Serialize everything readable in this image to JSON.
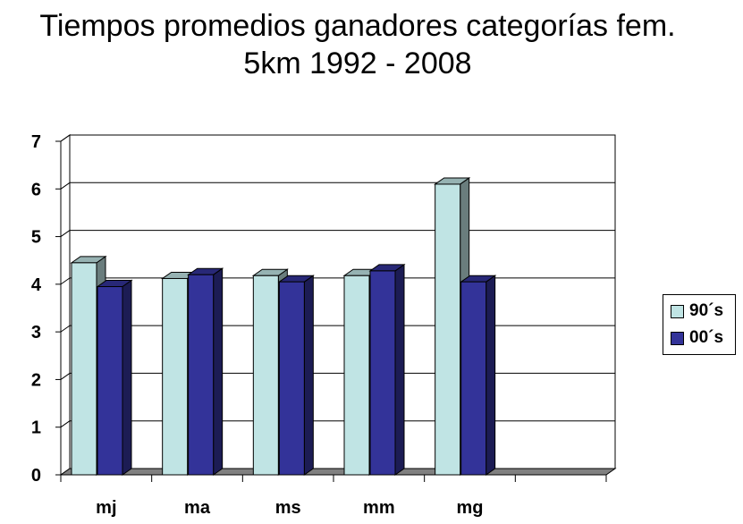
{
  "chart_data": {
    "type": "bar",
    "title_lines": [
      "Tiempos promedios ganadores categorías fem.",
      "5km 1992 - 2008"
    ],
    "categories": [
      "mj",
      "ma",
      "ms",
      "mm",
      "mg"
    ],
    "series": [
      {
        "name": "90´s",
        "values": [
          4.45,
          4.12,
          4.18,
          4.18,
          6.1
        ],
        "color": "#c0e4e4"
      },
      {
        "name": "00´s",
        "values": [
          3.95,
          4.2,
          4.05,
          4.28,
          4.05
        ],
        "color": "#333399"
      }
    ],
    "yticks": [
      "0",
      "1",
      "2",
      "3",
      "4",
      "5",
      "6",
      "7"
    ],
    "ylim": [
      0,
      7
    ],
    "grid": true,
    "three_d": true,
    "legend_position": "right",
    "empty_trailing_category": true
  }
}
